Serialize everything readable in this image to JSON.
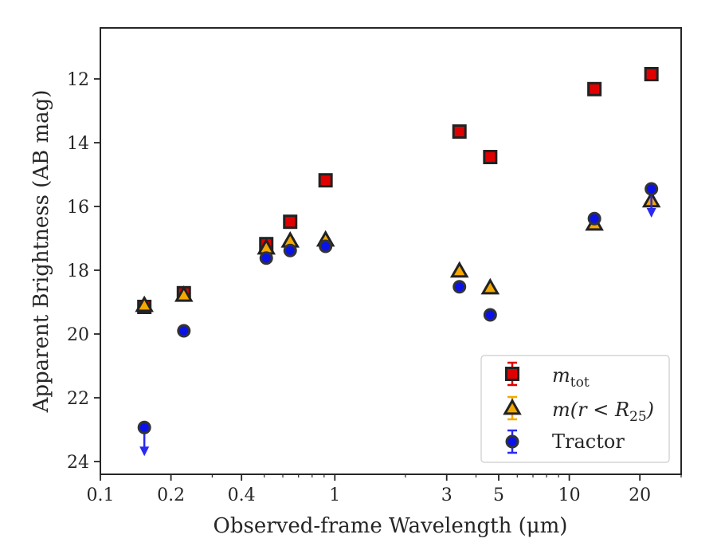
{
  "chart_data": {
    "type": "scatter",
    "xlabel": "Observed-frame Wavelength (μm)",
    "ylabel": "Apparent Brightness (AB mag)",
    "x_scale": "log",
    "xlim": [
      0.1,
      30
    ],
    "ylim": [
      24.4,
      10.4
    ],
    "y_inverted": true,
    "grid": false,
    "legend_position": "lower-right",
    "x_ticks": [
      {
        "value": 0.1,
        "label": "0.1"
      },
      {
        "value": 0.2,
        "label": "0.2"
      },
      {
        "value": 0.4,
        "label": "0.4"
      },
      {
        "value": 1,
        "label": "1"
      },
      {
        "value": 3,
        "label": "3"
      },
      {
        "value": 5,
        "label": "5"
      },
      {
        "value": 10,
        "label": "10"
      },
      {
        "value": 20,
        "label": "20"
      }
    ],
    "y_ticks": [
      {
        "value": 12,
        "label": "12"
      },
      {
        "value": 14,
        "label": "14"
      },
      {
        "value": 16,
        "label": "16"
      },
      {
        "value": 18,
        "label": "18"
      },
      {
        "value": 20,
        "label": "20"
      },
      {
        "value": 22,
        "label": "22"
      },
      {
        "value": 24,
        "label": "24"
      }
    ],
    "series": [
      {
        "name": "m_tot",
        "legend_main": "m",
        "legend_sub": "tot",
        "marker": "square",
        "color": "#e00000",
        "edge": "#222222",
        "points": [
          {
            "x": 0.154,
            "y": 19.15
          },
          {
            "x": 0.227,
            "y": 18.72
          },
          {
            "x": 0.51,
            "y": 17.18
          },
          {
            "x": 0.645,
            "y": 16.48
          },
          {
            "x": 0.913,
            "y": 15.18
          },
          {
            "x": 3.4,
            "y": 13.65
          },
          {
            "x": 4.6,
            "y": 14.45
          },
          {
            "x": 12.8,
            "y": 12.32
          },
          {
            "x": 22.4,
            "y": 11.85
          }
        ]
      },
      {
        "name": "m(r < R25)",
        "legend_math": "m(r < R",
        "legend_sub": "25",
        "legend_close": ")",
        "marker": "triangle",
        "color": "#f5a800",
        "edge": "#222222",
        "points": [
          {
            "x": 0.154,
            "y": 19.1
          },
          {
            "x": 0.227,
            "y": 18.78
          },
          {
            "x": 0.51,
            "y": 17.3
          },
          {
            "x": 0.645,
            "y": 17.08
          },
          {
            "x": 0.913,
            "y": 17.05
          },
          {
            "x": 3.4,
            "y": 18.02
          },
          {
            "x": 4.6,
            "y": 18.55
          },
          {
            "x": 12.8,
            "y": 16.55
          },
          {
            "x": 22.4,
            "y": 15.82
          }
        ]
      },
      {
        "name": "Tractor",
        "marker": "circle",
        "color": "#0a12e8",
        "edge": "#333333",
        "points": [
          {
            "x": 0.154,
            "y": 22.93,
            "upper_limit": true
          },
          {
            "x": 0.227,
            "y": 19.9
          },
          {
            "x": 0.51,
            "y": 17.62
          },
          {
            "x": 0.645,
            "y": 17.38
          },
          {
            "x": 0.913,
            "y": 17.25
          },
          {
            "x": 3.4,
            "y": 18.52
          },
          {
            "x": 4.6,
            "y": 19.4
          },
          {
            "x": 12.8,
            "y": 16.38
          },
          {
            "x": 22.4,
            "y": 15.45,
            "upper_limit": true
          }
        ]
      }
    ]
  }
}
